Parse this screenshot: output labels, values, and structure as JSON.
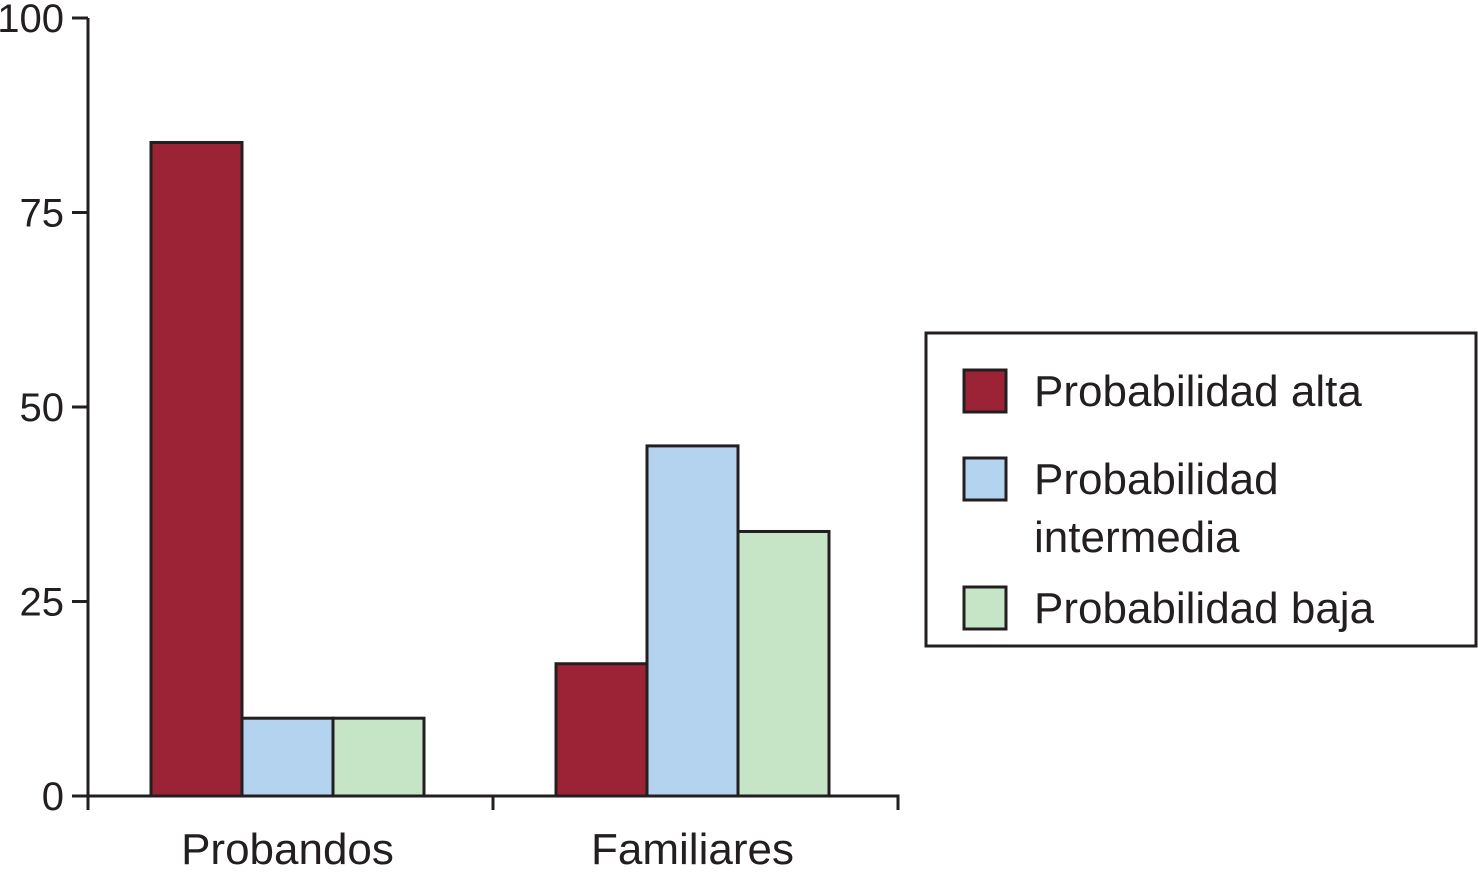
{
  "chart_data": {
    "type": "bar",
    "title": "",
    "xlabel": "",
    "ylabel": "",
    "ylim": [
      0,
      100
    ],
    "yticks": [
      0,
      25,
      50,
      75,
      100
    ],
    "categories": [
      "Probandos",
      "Familiares"
    ],
    "series": [
      {
        "name": "Probabilidad alta",
        "color": "#9b2335",
        "values": [
          84,
          17
        ]
      },
      {
        "name": "Probabilidad intermedia",
        "color": "#b4d3ef",
        "values": [
          10,
          45
        ]
      },
      {
        "name": "Probabilidad baja",
        "color": "#c6e5c6",
        "values": [
          10,
          34
        ]
      }
    ],
    "legend": {
      "position": "right",
      "entries": [
        {
          "lines": [
            "Probabilidad alta"
          ]
        },
        {
          "lines": [
            "Probabilidad",
            "intermedia"
          ]
        },
        {
          "lines": [
            "Probabilidad baja"
          ]
        }
      ]
    },
    "grid": false
  }
}
